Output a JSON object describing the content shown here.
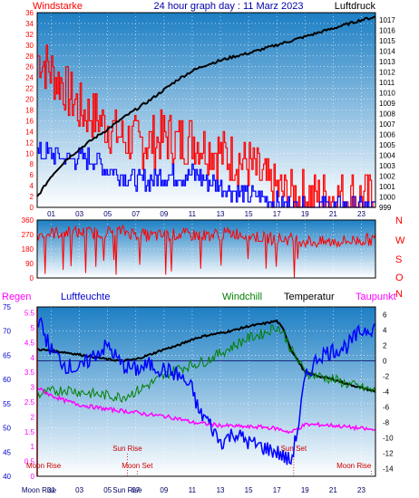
{
  "colors": {
    "background": "#ffffff",
    "plot_top": "#1d7fc4",
    "plot_bottom": "#ffffff",
    "wind_gust": "#ff0000",
    "wind_avg": "#0000ff",
    "pressure": "#000000",
    "direction": "#ff0000",
    "humidity": "#0000ff",
    "windchill": "#008000",
    "temperature": "#000000",
    "dewpoint": "#ff00ff",
    "rain": "#ff0000",
    "astro": "#cc0000"
  },
  "chart_data": [
    {
      "type": "line",
      "title": "24 hour graph day : 11 Marz 2023",
      "left_label": "Windstarke",
      "right_label": "Luftdruck",
      "x_ticks": [
        "01",
        "03",
        "05",
        "07",
        "09",
        "11",
        "13",
        "15",
        "17",
        "19",
        "21",
        "23"
      ],
      "y_left_ticks": [
        0,
        2,
        4,
        6,
        8,
        10,
        12,
        14,
        16,
        18,
        20,
        22,
        24,
        26,
        28,
        30,
        32,
        34,
        36
      ],
      "y_left_range": [
        0,
        36
      ],
      "y_right_ticks": [
        999,
        1000,
        1001,
        1002,
        1003,
        1004,
        1005,
        1006,
        1007,
        1008,
        1009,
        1010,
        1011,
        1012,
        1013,
        1014,
        1015,
        1016,
        1017
      ],
      "y_right_range": [
        999,
        1017.7
      ],
      "grid": true,
      "series": [
        {
          "key": "gust",
          "axis": "left",
          "x": [
            0,
            1,
            2,
            3,
            4,
            5,
            6,
            7,
            8,
            9,
            10,
            11,
            12,
            13,
            14,
            15,
            16,
            17,
            18,
            19,
            20,
            21,
            22,
            23,
            24
          ],
          "y": [
            28,
            25,
            22,
            18,
            17,
            15,
            13,
            12,
            12,
            13,
            12,
            13,
            11,
            10,
            9,
            8,
            5,
            3,
            2,
            2,
            2,
            2,
            2,
            2,
            2
          ]
        },
        {
          "key": "avg",
          "axis": "left",
          "x": [
            0,
            1,
            2,
            3,
            4,
            5,
            6,
            7,
            8,
            9,
            10,
            11,
            12,
            13,
            14,
            15,
            16,
            17,
            18,
            19,
            20,
            21,
            22,
            23,
            24
          ],
          "y": [
            10,
            10,
            9,
            9,
            9,
            7,
            6,
            5,
            5,
            6,
            6,
            6,
            5,
            4,
            3,
            2,
            2,
            1,
            0,
            0,
            0,
            0,
            0,
            0,
            0
          ]
        },
        {
          "key": "pressure",
          "axis": "right",
          "x": [
            0,
            1,
            2,
            3,
            4,
            5,
            6,
            7,
            8,
            9,
            10,
            11,
            12,
            13,
            14,
            15,
            16,
            17,
            18,
            19,
            20,
            21,
            22,
            23,
            24
          ],
          "y": [
            1000,
            1002,
            1003.5,
            1004.6,
            1005.6,
            1006.5,
            1007.5,
            1008.4,
            1009.3,
            1010.3,
            1011.3,
            1012.1,
            1012.7,
            1013.1,
            1013.5,
            1013.8,
            1014.2,
            1014.6,
            1015.0,
            1015.4,
            1015.8,
            1016.2,
            1016.6,
            1017.0,
            1017.3
          ]
        }
      ]
    },
    {
      "type": "line",
      "y_left_ticks": [
        0,
        90,
        180,
        270,
        360
      ],
      "y_left_range": [
        0,
        360
      ],
      "right_labels": [
        "N",
        "W",
        "S",
        "O",
        "N"
      ],
      "series": [
        {
          "key": "direction",
          "x": [
            0,
            2,
            4,
            6,
            8,
            10,
            12,
            14,
            16,
            18,
            20,
            22,
            24
          ],
          "y": [
            270,
            285,
            280,
            290,
            260,
            270,
            265,
            280,
            250,
            240,
            220,
            230,
            240
          ]
        }
      ]
    },
    {
      "type": "line",
      "labels": {
        "rain": "Regen",
        "humidity": "Luftfeuchte",
        "windchill": "Windchill",
        "temperature": "Temperatur",
        "dewpoint": "Taupunkt"
      },
      "y_left_ticks": [
        40,
        45,
        50,
        55,
        60,
        65,
        70,
        75
      ],
      "y_left_range": [
        40,
        75
      ],
      "y_rain_ticks": [
        "0",
        "0.5",
        "1",
        "1.5",
        "2",
        "2.5",
        "3",
        "3.5",
        "4",
        "4.5",
        "5",
        "5.5"
      ],
      "y_rain_range": [
        0,
        5.7
      ],
      "y_right_ticks": [
        6,
        4,
        2,
        0,
        -2,
        -4,
        -6,
        -8,
        -10,
        -12,
        -14
      ],
      "y_right_range": [
        -15,
        7
      ],
      "x_ticks": [
        "Moon Rise",
        "01",
        "03",
        "05",
        "07",
        "Sun Rise",
        "09",
        "11",
        "13",
        "15",
        "17",
        "19",
        "21",
        "23"
      ],
      "annotations": [
        {
          "text": "Moon Rise",
          "x": 0.0
        },
        {
          "text": "Sun Rise",
          "x": 6.4
        },
        {
          "text": "Moon Set",
          "x": 7.1
        },
        {
          "text": "Sun Set",
          "x": 18.2
        },
        {
          "text": "Moon Rise",
          "x": 23.7
        }
      ],
      "series": [
        {
          "key": "temperature",
          "axis": "right",
          "x": [
            0,
            1,
            2,
            3,
            4,
            5,
            6,
            7,
            8,
            9,
            10,
            11,
            12,
            13,
            14,
            15,
            16,
            17,
            17.5,
            18,
            19,
            20,
            21,
            22,
            23,
            24
          ],
          "y": [
            1.5,
            1.3,
            1.1,
            0.8,
            0.5,
            0.2,
            0,
            0.2,
            0.8,
            1.5,
            2.0,
            2.8,
            3.3,
            3.6,
            4.0,
            4.5,
            4.8,
            5.2,
            4.0,
            1.5,
            -1.5,
            -2.0,
            -2.4,
            -3.0,
            -3.5,
            -4.0
          ]
        },
        {
          "key": "windchill",
          "axis": "right",
          "x": [
            0,
            1,
            2,
            3,
            4,
            5,
            6,
            7,
            8,
            9,
            10,
            11,
            12,
            13,
            14,
            15,
            16,
            17,
            17.5,
            18,
            19,
            20,
            21,
            22,
            23,
            24
          ],
          "y": [
            -4.5,
            -4,
            -3.7,
            -4,
            -4.3,
            -4.5,
            -4.7,
            -4,
            -3,
            -2,
            -1,
            -0.5,
            0,
            1,
            2,
            3,
            3.5,
            4.5,
            3.5,
            1.5,
            -1.5,
            -2.0,
            -2.4,
            -3.0,
            -3.5,
            -4.0
          ]
        },
        {
          "key": "dewpoint",
          "axis": "right",
          "x": [
            0,
            1,
            2,
            3,
            4,
            5,
            6,
            7,
            8,
            9,
            10,
            11,
            12,
            13,
            14,
            15,
            16,
            17,
            18,
            19,
            20,
            21,
            22,
            23,
            24
          ],
          "y": [
            -3.5,
            -4.5,
            -5.2,
            -5.7,
            -6.0,
            -6.3,
            -6.5,
            -6.7,
            -7.0,
            -7.2,
            -7.5,
            -8.0,
            -8.2,
            -8.4,
            -8.5,
            -8.6,
            -8.6,
            -8.8,
            -9.3,
            -8.3,
            -8.3,
            -8.4,
            -8.6,
            -8.8,
            -9.0
          ]
        },
        {
          "key": "humidity",
          "axis": "left",
          "x": [
            0,
            1,
            2,
            3,
            4,
            5,
            6,
            7,
            8,
            9,
            10,
            11,
            11.5,
            12,
            13,
            14,
            15,
            16,
            17,
            17.5,
            18,
            18.5,
            19,
            20,
            21,
            22,
            23,
            24
          ],
          "y": [
            73,
            66,
            63,
            62,
            65,
            67,
            63,
            62,
            63,
            62,
            61,
            58,
            53,
            52,
            47,
            49,
            47,
            46,
            45,
            44,
            43,
            50,
            60,
            65,
            66,
            67,
            70,
            71
          ]
        }
      ]
    }
  ]
}
